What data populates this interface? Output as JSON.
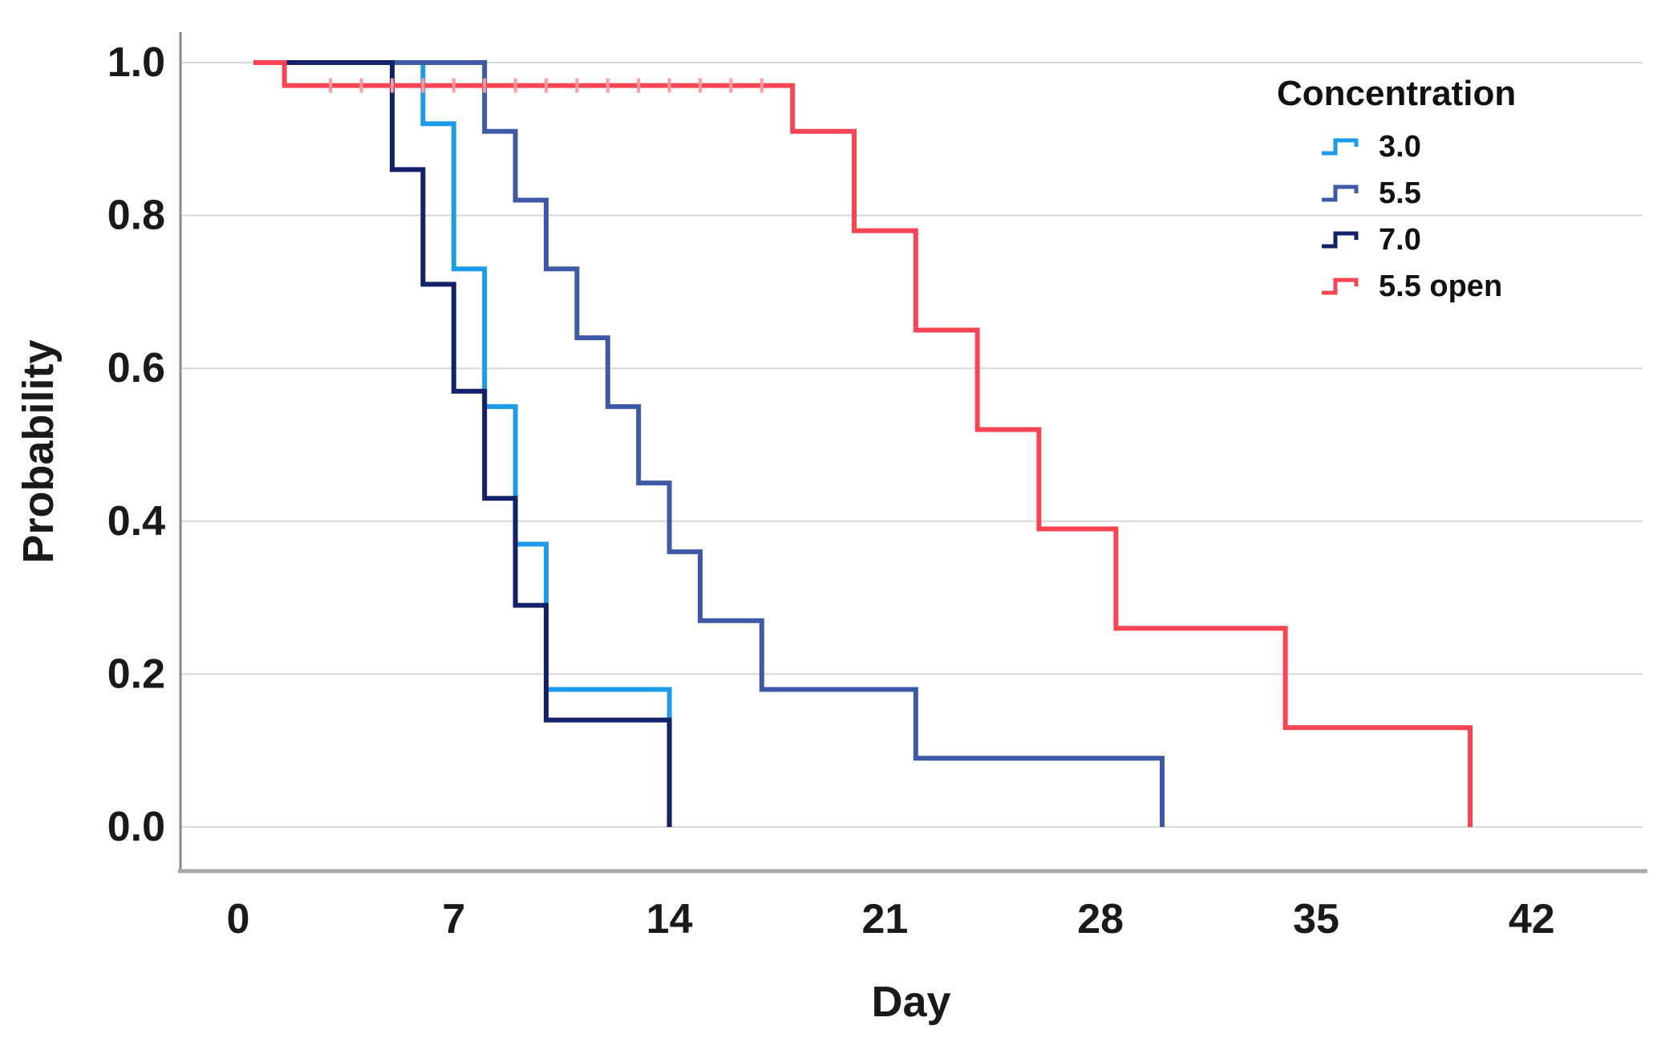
{
  "figure": {
    "kind": "survival-plot",
    "background": "#ffffff"
  },
  "colors": {
    "grid": "#D7D7D7",
    "axis_left": "#8A8A8A",
    "axis_bottom": "#A8A8A8",
    "text": "#1A1A1A",
    "censor_tick": "#FF9AA1"
  },
  "chart_data": {
    "type": "line",
    "subtype": "kaplan-meier-step",
    "title": "",
    "xlabel": "Day",
    "ylabel": "Probability",
    "x_ticks": [
      0,
      7,
      14,
      21,
      28,
      35,
      42
    ],
    "y_tick_labels": [
      "1.0",
      "0.8",
      "0.6",
      "0.4",
      "0.2",
      "0.0"
    ],
    "xlim": [
      0,
      42
    ],
    "ylim": [
      0.0,
      1.0
    ],
    "grid": "horizontal",
    "legend_title": "Concentration",
    "legend_position": "top-right",
    "series": [
      {
        "name": "3.0",
        "color": "#1E9BE8",
        "start": [
          0.5,
          1.0
        ],
        "steps": [
          [
            6,
            0.92
          ],
          [
            7,
            0.73
          ],
          [
            8,
            0.55
          ],
          [
            9,
            0.37
          ],
          [
            10,
            0.18
          ],
          [
            14,
            0.0
          ]
        ]
      },
      {
        "name": "5.5",
        "color": "#3E59A7",
        "start": [
          0.5,
          1.0
        ],
        "steps": [
          [
            8,
            0.91
          ],
          [
            9,
            0.82
          ],
          [
            10,
            0.73
          ],
          [
            11,
            0.64
          ],
          [
            12,
            0.55
          ],
          [
            13,
            0.45
          ],
          [
            14,
            0.36
          ],
          [
            15,
            0.27
          ],
          [
            17,
            0.18
          ],
          [
            22,
            0.09
          ],
          [
            30,
            0.0
          ]
        ]
      },
      {
        "name": "7.0",
        "color": "#13216B",
        "start": [
          0.5,
          1.0
        ],
        "steps": [
          [
            5,
            0.86
          ],
          [
            6,
            0.71
          ],
          [
            7,
            0.57
          ],
          [
            8,
            0.43
          ],
          [
            9,
            0.29
          ],
          [
            10,
            0.14
          ],
          [
            14,
            0.0
          ]
        ]
      },
      {
        "name": "5.5 open",
        "color": "#FB4453",
        "start": [
          0.5,
          1.0
        ],
        "steps": [
          [
            1.5,
            0.97
          ],
          [
            18,
            0.91
          ],
          [
            20,
            0.78
          ],
          [
            22,
            0.65
          ],
          [
            24,
            0.52
          ],
          [
            26,
            0.39
          ],
          [
            28.5,
            0.26
          ],
          [
            34,
            0.13
          ],
          [
            40,
            0.0
          ]
        ],
        "censor_days": [
          3,
          4,
          5,
          6,
          7,
          8,
          9,
          10,
          11,
          12,
          13,
          14,
          15,
          16,
          17
        ],
        "censor_level": 0.97
      }
    ]
  }
}
